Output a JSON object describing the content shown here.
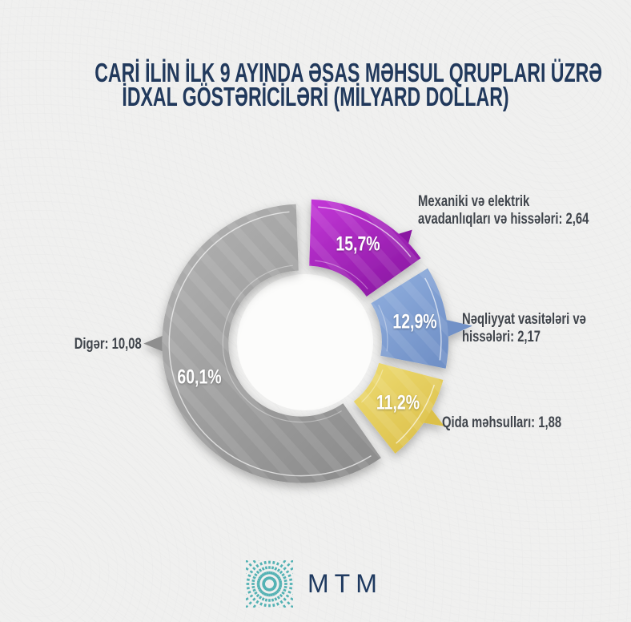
{
  "title": {
    "line1": "CARİ İLİN İLK 9 AYINDA ƏSAS MƏHSUL QRUPLARI ÜZRƏ",
    "line2": "İDXAL GÖSTƏRİCİLƏRİ (MİLYARD DOLLAR)",
    "color": "#21395c"
  },
  "chart_data": {
    "type": "pie",
    "subtype": "donut",
    "title": "Cari ilin ilk 9 ayında əsas məhsul qrupları üzrə idxal göstəriciləri (milyard dollar)",
    "unit": "milyard dollar",
    "legend_position": "callouts",
    "series": [
      {
        "name": "Mexaniki və elektrik avadanlıqları və hissələri",
        "percent": 15.7,
        "value": 2.64,
        "percent_label": "15,7%",
        "callout_lines": [
          "Mexaniki və elektrik",
          "avadanlıqları və hissələri: 2,64"
        ],
        "color_start": "#c438d8",
        "color_end": "#8a17a2"
      },
      {
        "name": "Nəqliyyat vasitələri və hissələri",
        "percent": 12.9,
        "value": 2.17,
        "percent_label": "12,9%",
        "callout_lines": [
          "Nəqliyyat vasitələri və",
          "hissələri: 2,17"
        ],
        "color_start": "#92b0df",
        "color_end": "#7191c7"
      },
      {
        "name": "Qida məhsulları",
        "percent": 11.2,
        "value": 1.88,
        "percent_label": "11,2%",
        "callout_lines": [
          "Qida məhsulları: 1,88"
        ],
        "color_start": "#eedc74",
        "color_end": "#dcc04a"
      },
      {
        "name": "Digər",
        "percent": 60.1,
        "value": 10.08,
        "percent_label": "60,1%",
        "callout_lines": [
          "Digər: 10,08"
        ],
        "color_start": "#b3b3b3",
        "color_end": "#8e8e8e"
      }
    ]
  },
  "footer": {
    "logo_text": "MTM",
    "logo_text_color": "#1f3a60",
    "logo_mark_color": "#54b2b4"
  }
}
